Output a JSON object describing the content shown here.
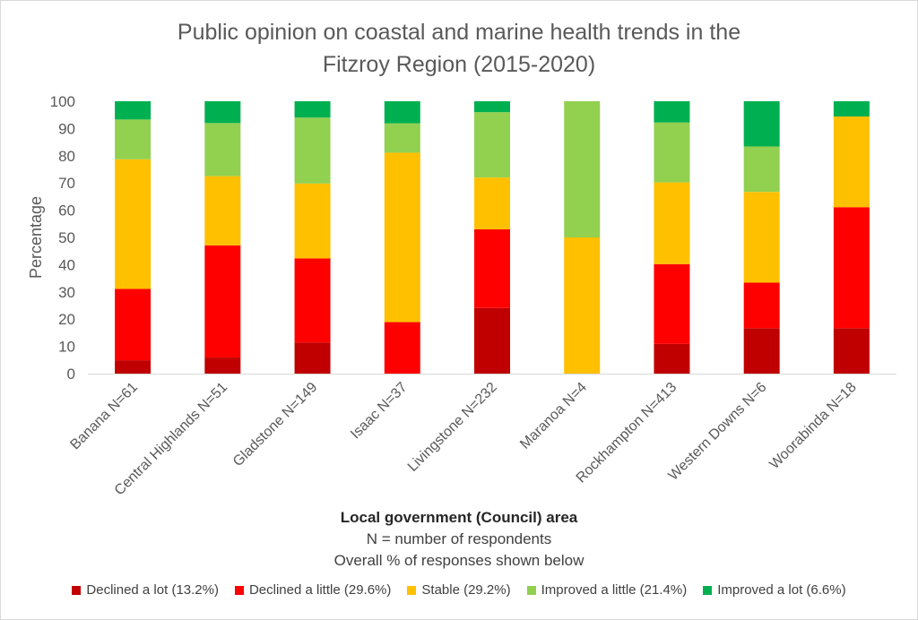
{
  "chart_data": {
    "type": "bar",
    "stacked": true,
    "title_lines": [
      "Public opinion on coastal and marine health trends in the",
      "Fitzroy Region (2015-2020)"
    ],
    "xlabel": "Local government (Council) area",
    "xlabel_notes": [
      "N = number of respondents",
      "Overall % of responses shown below"
    ],
    "ylabel": "Percentage",
    "ylim": [
      0,
      100
    ],
    "yticks": [
      0,
      10,
      20,
      30,
      40,
      50,
      60,
      70,
      80,
      90,
      100
    ],
    "grid": false,
    "legend_position": "bottom",
    "categories": [
      "Banana N=61",
      "Central Highlands N=51",
      "Gladstone N=149",
      "Isaac N=37",
      "Livingstone N=232",
      "Maranoa N=4",
      "Rockhampton N=413",
      "Western Downs N=6",
      "Woorabinda N=18"
    ],
    "series": [
      {
        "name": "Declined a lot (13.2%)",
        "color": "#c00000",
        "values": [
          4.9,
          5.9,
          11.4,
          0,
          24.1,
          0,
          10.9,
          16.7,
          16.7
        ]
      },
      {
        "name": "Declined a little (29.6%)",
        "color": "#ff0000",
        "values": [
          26.2,
          41.2,
          30.9,
          18.9,
          28.9,
          0,
          29.3,
          16.7,
          44.4
        ]
      },
      {
        "name": "Stable (29.2%)",
        "color": "#ffc000",
        "values": [
          47.6,
          25.4,
          27.5,
          62.2,
          19.0,
          50.0,
          30.0,
          33.3,
          33.3
        ]
      },
      {
        "name": "Improved a little (21.4%)",
        "color": "#92d050",
        "values": [
          14.6,
          19.5,
          24.2,
          10.8,
          24.0,
          50.0,
          22.0,
          16.7,
          0
        ]
      },
      {
        "name": "Improved a lot (6.6%)",
        "color": "#00b050",
        "values": [
          6.7,
          8.0,
          6.0,
          8.1,
          4.0,
          0,
          7.8,
          16.6,
          5.6
        ]
      }
    ]
  }
}
